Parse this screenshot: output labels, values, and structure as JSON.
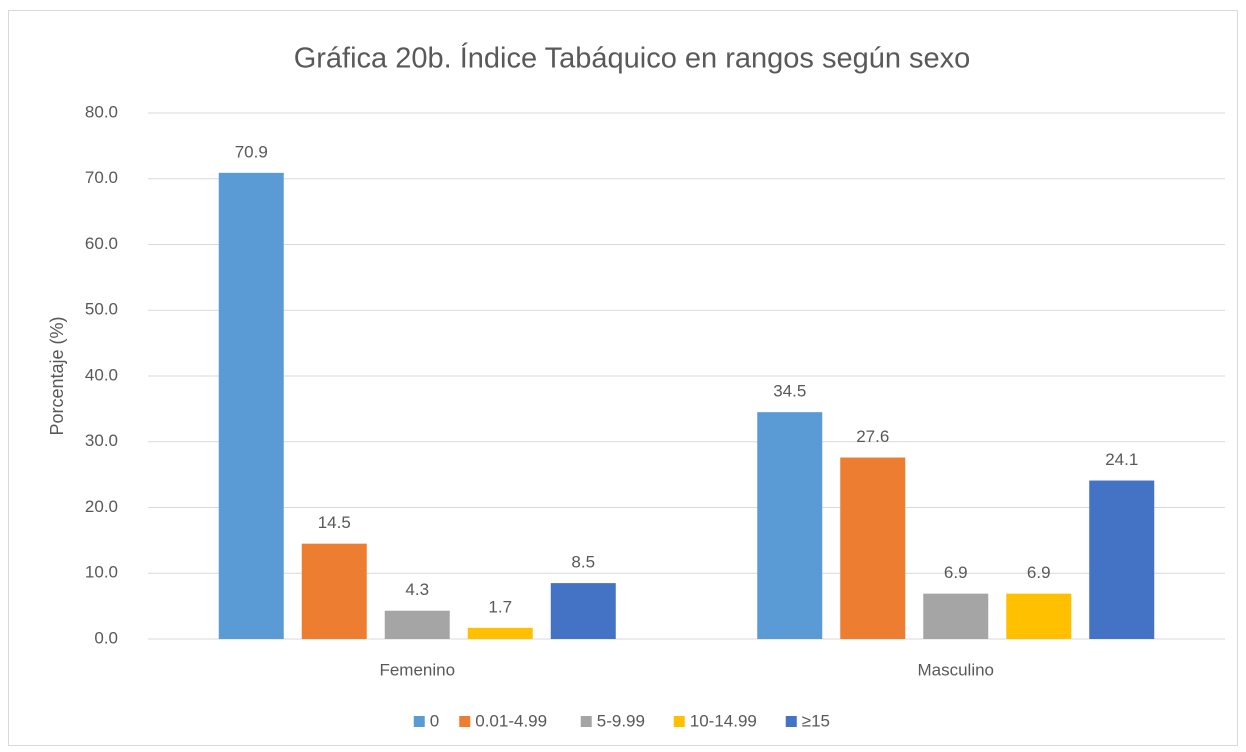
{
  "chart_data": {
    "type": "bar",
    "title": "Gráfica 20b. Índice Tabáquico en rangos según sexo",
    "y_label": "Porcentaje (%)",
    "categories": [
      "Femenino",
      "Masculino"
    ],
    "series": [
      {
        "name": "0",
        "color": "#5b9bd5",
        "values": [
          70.9,
          34.5
        ]
      },
      {
        "name": "0.01-4.99",
        "color": "#ed7d31",
        "values": [
          14.5,
          27.6
        ]
      },
      {
        "name": "5-9.99",
        "color": "#a5a5a5",
        "values": [
          4.3,
          6.9
        ]
      },
      {
        "name": "10-14.99",
        "color": "#ffc000",
        "values": [
          1.7,
          6.9
        ]
      },
      {
        "name": "≥15",
        "color": "#4472c4",
        "values": [
          8.5,
          24.1
        ]
      }
    ],
    "ylim": [
      0,
      80
    ],
    "yticks": [
      {
        "value": 0,
        "label": "0.0"
      },
      {
        "value": 10,
        "label": "10.0"
      },
      {
        "value": 20,
        "label": "20.0"
      },
      {
        "value": 30,
        "label": "30.0"
      },
      {
        "value": 40,
        "label": "40.0"
      },
      {
        "value": 50,
        "label": "50.0"
      },
      {
        "value": 60,
        "label": "60.0"
      },
      {
        "value": 70,
        "label": "70.0"
      },
      {
        "value": 80,
        "label": "80.0"
      }
    ],
    "grid": true,
    "legend": "bottom"
  }
}
